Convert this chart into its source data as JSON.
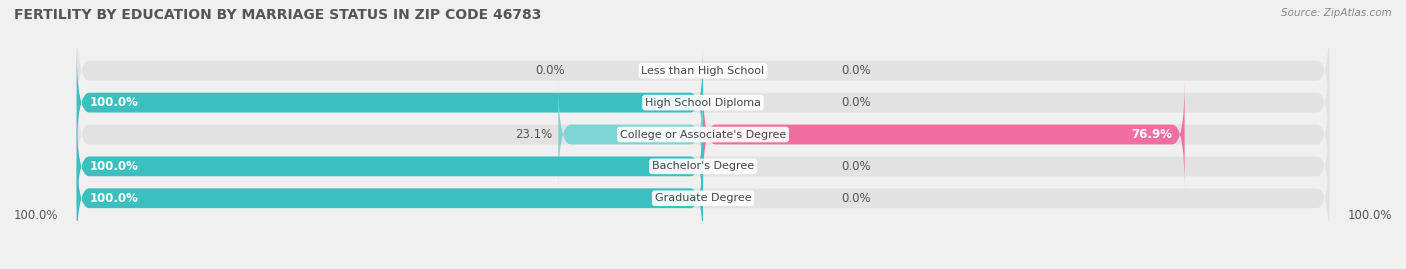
{
  "title": "FERTILITY BY EDUCATION BY MARRIAGE STATUS IN ZIP CODE 46783",
  "source": "Source: ZipAtlas.com",
  "categories": [
    "Less than High School",
    "High School Diploma",
    "College or Associate's Degree",
    "Bachelor's Degree",
    "Graduate Degree"
  ],
  "married": [
    0.0,
    100.0,
    23.1,
    100.0,
    100.0
  ],
  "unmarried": [
    0.0,
    0.0,
    76.9,
    0.0,
    0.0
  ],
  "married_color": "#3bbfbf",
  "unmarried_color": "#f06fa0",
  "married_light_color": "#7dd4d4",
  "unmarried_light_color": "#f5b8d0",
  "bg_color": "#f0f0f0",
  "bar_bg_color": "#e2e2e2",
  "title_color": "#555555",
  "source_color": "#888888",
  "legend_married_color": "#3bbfbf",
  "legend_unmarried_color": "#f06fa0",
  "axis_label_left": "100.0%",
  "axis_label_right": "100.0%",
  "title_fontsize": 10,
  "label_fontsize": 8.5,
  "bar_height": 0.62
}
